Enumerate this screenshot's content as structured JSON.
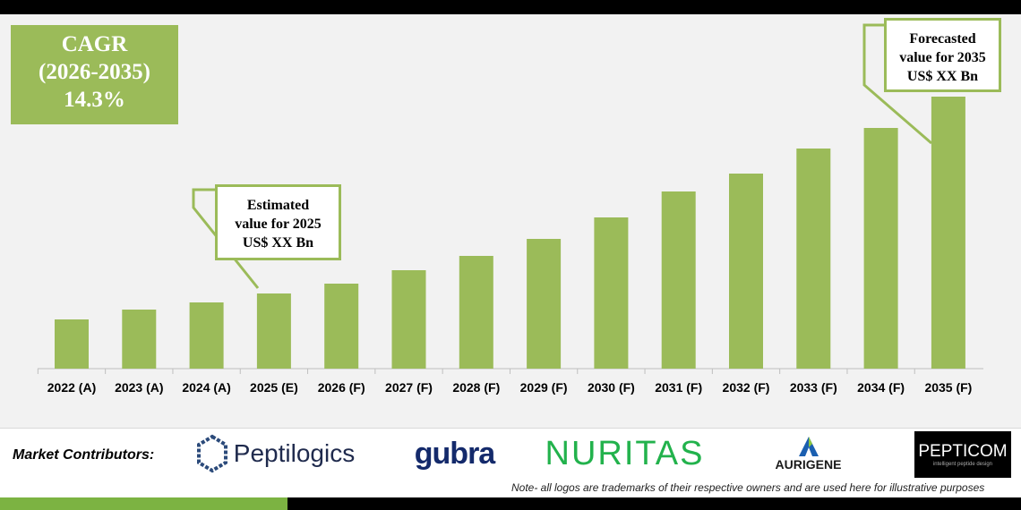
{
  "chart_data": {
    "type": "bar",
    "title": "",
    "xlabel": "",
    "ylabel": "",
    "categories": [
      "2022 (A)",
      "2023 (A)",
      "2024 (A)",
      "2025 (E)",
      "2026 (F)",
      "2027 (F)",
      "2028 (F)",
      "2029 (F)",
      "2030 (F)",
      "2031 (F)",
      "2032 (F)",
      "2033 (F)",
      "2034 (F)",
      "2035 (F)"
    ],
    "values": [
      55,
      66,
      74,
      84,
      95,
      110,
      126,
      145,
      169,
      198,
      218,
      246,
      269,
      304
    ],
    "value_units": "relative bar height (no y-axis shown)",
    "grid": false,
    "legend": "none",
    "bar_color": "#9bbb59"
  },
  "cagr": {
    "line1": "CAGR",
    "line2": "(2026-2035)",
    "value": "14.3%"
  },
  "callout_2025": {
    "line1": "Estimated",
    "line2": "value for 2025",
    "line3": "US$ XX Bn"
  },
  "callout_2035": {
    "line1": "Forecasted",
    "line2": "value for 2035",
    "line3": "US$ XX Bn"
  },
  "contributors": {
    "label": "Market Contributors:",
    "logos": [
      "Peptilogics",
      "gubra",
      "NURITAS",
      "AURIGENE",
      "PEPTICOM"
    ],
    "pepticom_tagline": "intelligent peptide design",
    "note": "Note- all logos are trademarks of their respective owners and are used here for illustrative purposes"
  },
  "colors": {
    "accent": "#9bbb59",
    "background": "#f2f2f2"
  }
}
